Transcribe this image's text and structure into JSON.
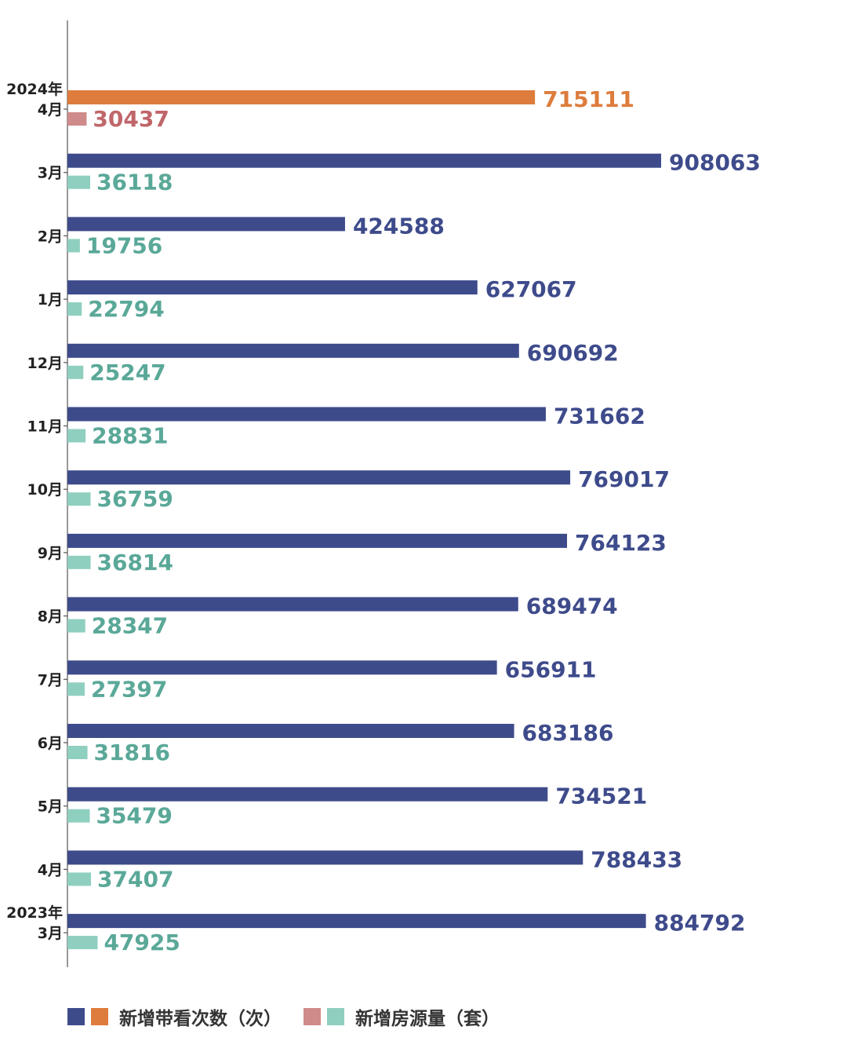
{
  "chart_data": {
    "type": "bar",
    "orientation": "horizontal",
    "categories": [
      [
        "2024年",
        "4月"
      ],
      [
        "3月"
      ],
      [
        "2月"
      ],
      [
        "1月"
      ],
      [
        "12月"
      ],
      [
        "11月"
      ],
      [
        "10月"
      ],
      [
        "9月"
      ],
      [
        "8月"
      ],
      [
        "7月"
      ],
      [
        "6月"
      ],
      [
        "5月"
      ],
      [
        "4月"
      ],
      [
        "2023年",
        "3月"
      ]
    ],
    "series": [
      {
        "name": "新增带看次数（次）",
        "values": [
          715111,
          908063,
          424588,
          627067,
          690692,
          731662,
          769017,
          764123,
          689474,
          656911,
          683186,
          734521,
          788433,
          884792
        ],
        "color": "#3e4b8b",
        "highlight_color": "#dd7c3c"
      },
      {
        "name": "新增房源量（套）",
        "values": [
          30437,
          36118,
          19756,
          22794,
          25247,
          28831,
          36759,
          36814,
          28347,
          27397,
          31816,
          35479,
          37407,
          47925
        ],
        "color": "#8fcfc0",
        "label_color": "#5aa898",
        "highlight_color": "#cf8a8a",
        "highlight_label_color": "#c0666a"
      }
    ],
    "highlight_index": 0,
    "xlim_visits": [
      0,
      908063
    ],
    "xlim_listings": [
      0,
      159500
    ],
    "grid": false,
    "legend_position": "bottom-left"
  },
  "legend": {
    "visits_label": "新增带看次数（次）",
    "listings_label": "新增房源量（套）"
  }
}
